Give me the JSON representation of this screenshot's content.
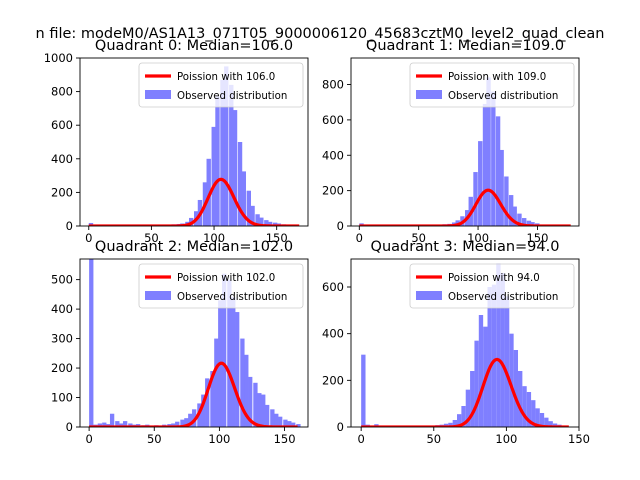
{
  "suptitle": "n file: modeM0/AS1A13_071T05_9000006120_45683cztM0_level2_quad_clean",
  "colors": {
    "bars": "#7f7fff",
    "curve": "#ff0000",
    "axes": "#000000",
    "background": "#ffffff"
  },
  "chart_data": [
    {
      "type": "bar",
      "title": "Quadrant 0: Median=106.0",
      "median": 106.0,
      "xlim": [
        -7,
        175
      ],
      "ylim": [
        0,
        1000
      ],
      "xticks": [
        0,
        50,
        100,
        150
      ],
      "yticks": [
        0,
        200,
        400,
        600,
        800,
        1000
      ],
      "legend": {
        "placement": "top-right",
        "entries": [
          "Poission with 106.0",
          "Observed distribution"
        ]
      },
      "bin_width": 3.5,
      "bins": [
        [
          0,
          18
        ],
        [
          3.5,
          5
        ],
        [
          7,
          3
        ],
        [
          35,
          3
        ],
        [
          52,
          4
        ],
        [
          56,
          5
        ],
        [
          59,
          5
        ],
        [
          63,
          8
        ],
        [
          66,
          10
        ],
        [
          70,
          12
        ],
        [
          73,
          15
        ],
        [
          77,
          25
        ],
        [
          80,
          48
        ],
        [
          84,
          88
        ],
        [
          87,
          155
        ],
        [
          91,
          260
        ],
        [
          94,
          400
        ],
        [
          98,
          590
        ],
        [
          101,
          770
        ],
        [
          105,
          870
        ],
        [
          108,
          950
        ],
        [
          112,
          840
        ],
        [
          115,
          690
        ],
        [
          119,
          500
        ],
        [
          122,
          325
        ],
        [
          126,
          210
        ],
        [
          129,
          120
        ],
        [
          133,
          70
        ],
        [
          136,
          50
        ],
        [
          140,
          35
        ],
        [
          143,
          25
        ],
        [
          147,
          20
        ],
        [
          150,
          15
        ],
        [
          154,
          10
        ],
        [
          157,
          6
        ],
        [
          161,
          4
        ],
        [
          164,
          3
        ]
      ],
      "curve_xmax": 168
    },
    {
      "type": "bar",
      "title": "Quadrant 1: Median=109.0",
      "median": 109.0,
      "xlim": [
        -7,
        185
      ],
      "ylim": [
        0,
        950
      ],
      "xticks": [
        0,
        50,
        100,
        150
      ],
      "yticks": [
        0,
        200,
        400,
        600,
        800
      ],
      "legend": {
        "placement": "top-right",
        "entries": [
          "Poission with 109.0",
          "Observed distribution"
        ]
      },
      "bin_width": 3.7,
      "bins": [
        [
          0,
          15
        ],
        [
          3.7,
          5
        ],
        [
          7.4,
          3
        ],
        [
          55,
          4
        ],
        [
          59,
          5
        ],
        [
          63,
          5
        ],
        [
          66,
          8
        ],
        [
          70,
          10
        ],
        [
          74,
          12
        ],
        [
          78,
          20
        ],
        [
          81,
          32
        ],
        [
          85,
          55
        ],
        [
          89,
          90
        ],
        [
          92,
          165
        ],
        [
          96,
          305
        ],
        [
          100,
          480
        ],
        [
          104,
          690
        ],
        [
          107,
          840
        ],
        [
          111,
          760
        ],
        [
          115,
          620
        ],
        [
          118,
          430
        ],
        [
          122,
          280
        ],
        [
          126,
          175
        ],
        [
          129,
          110
        ],
        [
          133,
          70
        ],
        [
          137,
          45
        ],
        [
          141,
          30
        ],
        [
          144,
          22
        ],
        [
          148,
          15
        ]
      ],
      "curve_xmax": 178
    },
    {
      "type": "bar",
      "title": "Quadrant 2: Median=102.0",
      "median": 102.0,
      "xlim": [
        -7,
        168
      ],
      "ylim": [
        0,
        570
      ],
      "xticks": [
        0,
        50,
        100,
        150
      ],
      "yticks": [
        0,
        100,
        200,
        300,
        400,
        500
      ],
      "legend": {
        "placement": "top-right",
        "entries": [
          "Poission with 102.0",
          "Observed distribution"
        ]
      },
      "bin_width": 3.3,
      "bins": [
        [
          0,
          570
        ],
        [
          3.3,
          8
        ],
        [
          6.6,
          12
        ],
        [
          10,
          15
        ],
        [
          13,
          10
        ],
        [
          16,
          45
        ],
        [
          20,
          20
        ],
        [
          23,
          12
        ],
        [
          26,
          20
        ],
        [
          30,
          12
        ],
        [
          33,
          8
        ],
        [
          36,
          10
        ],
        [
          40,
          6
        ],
        [
          43,
          8
        ],
        [
          46,
          5
        ],
        [
          50,
          6
        ],
        [
          53,
          5
        ],
        [
          56,
          8
        ],
        [
          60,
          10
        ],
        [
          63,
          12
        ],
        [
          66,
          18
        ],
        [
          70,
          25
        ],
        [
          73,
          30
        ],
        [
          76,
          45
        ],
        [
          79,
          60
        ],
        [
          83,
          80
        ],
        [
          86,
          110
        ],
        [
          89,
          165
        ],
        [
          93,
          190
        ],
        [
          96,
          300
        ],
        [
          99,
          430
        ],
        [
          102,
          520
        ],
        [
          106,
          500
        ],
        [
          109,
          440
        ],
        [
          112,
          390
        ],
        [
          116,
          300
        ],
        [
          119,
          245
        ],
        [
          122,
          170
        ],
        [
          126,
          150
        ],
        [
          129,
          115
        ],
        [
          132,
          110
        ],
        [
          135,
          75
        ],
        [
          139,
          60
        ],
        [
          142,
          45
        ],
        [
          145,
          35
        ],
        [
          149,
          25
        ],
        [
          152,
          20
        ],
        [
          155,
          15
        ],
        [
          159,
          10
        ]
      ],
      "curve_xmax": 160
    },
    {
      "type": "bar",
      "title": "Quadrant 3: Median=94.0",
      "median": 94.0,
      "xlim": [
        -7,
        150
      ],
      "ylim": [
        0,
        720
      ],
      "xticks": [
        0,
        50,
        100,
        150
      ],
      "yticks": [
        0,
        200,
        400,
        600
      ],
      "legend": {
        "placement": "top-right",
        "entries": [
          "Poission with 94.0",
          "Observed distribution"
        ]
      },
      "bin_width": 3.0,
      "bins": [
        [
          0,
          310
        ],
        [
          3,
          10
        ],
        [
          6,
          5
        ],
        [
          9,
          12
        ],
        [
          12,
          5
        ],
        [
          15,
          4
        ],
        [
          45,
          5
        ],
        [
          48,
          6
        ],
        [
          51,
          8
        ],
        [
          54,
          10
        ],
        [
          57,
          14
        ],
        [
          60,
          18
        ],
        [
          63,
          30
        ],
        [
          66,
          55
        ],
        [
          69,
          90
        ],
        [
          72,
          160
        ],
        [
          75,
          240
        ],
        [
          78,
          370
        ],
        [
          81,
          480
        ],
        [
          84,
          430
        ],
        [
          87,
          600
        ],
        [
          90,
          610
        ],
        [
          93,
          700
        ],
        [
          96,
          660
        ],
        [
          99,
          560
        ],
        [
          102,
          400
        ],
        [
          105,
          330
        ],
        [
          108,
          240
        ],
        [
          111,
          175
        ],
        [
          114,
          150
        ],
        [
          117,
          115
        ],
        [
          120,
          80
        ],
        [
          123,
          60
        ],
        [
          126,
          40
        ],
        [
          129,
          25
        ],
        [
          132,
          15
        ],
        [
          135,
          10
        ],
        [
          138,
          5
        ]
      ],
      "curve_xmax": 143
    }
  ]
}
